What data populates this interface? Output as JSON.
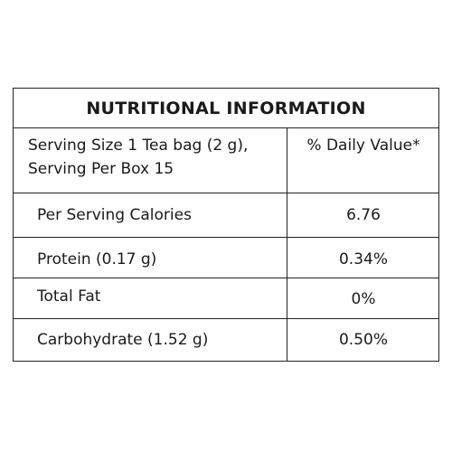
{
  "title": "NUTRITIONAL INFORMATION",
  "header": {
    "serving_line1": "Serving Size 1 Tea bag (2 g),",
    "serving_line2": "Serving Per Box 15",
    "daily_value_label": "% Daily Value*"
  },
  "rows": [
    {
      "label": "Per Serving Calories",
      "value": "6.76"
    },
    {
      "label": "Protein (0.17 g)",
      "value": "0.34%"
    },
    {
      "label": "Total Fat",
      "value": "0%"
    },
    {
      "label": "Carbohydrate (1.52 g)",
      "value": "0.50%"
    }
  ]
}
